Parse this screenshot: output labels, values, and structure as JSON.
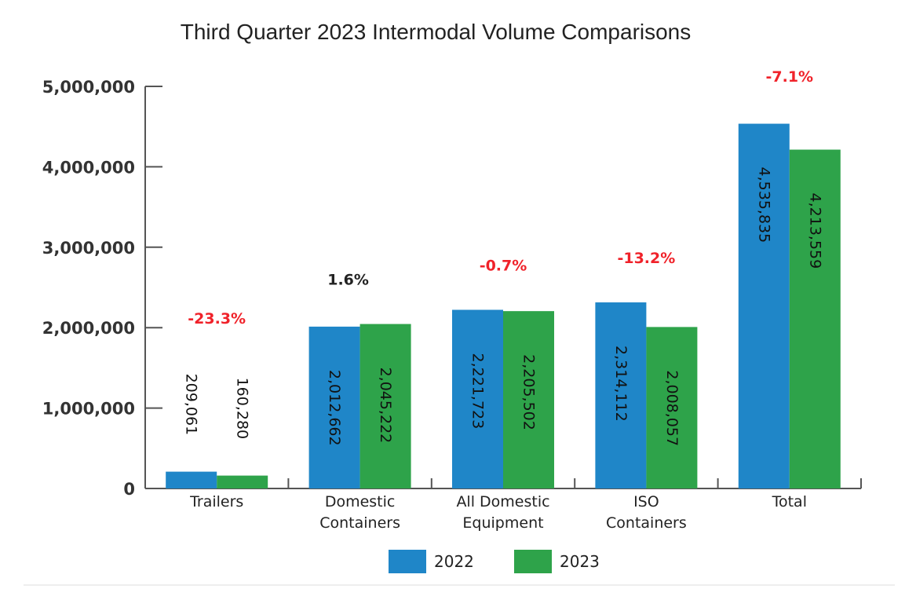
{
  "chart_data": {
    "type": "bar",
    "title": "Third Quarter 2023 Intermodal Volume Comparisons",
    "xlabel": "",
    "ylabel": "",
    "ylim": [
      0,
      5000000
    ],
    "yticks": [
      0,
      1000000,
      2000000,
      3000000,
      4000000,
      5000000
    ],
    "ytick_labels": [
      "0",
      "1,000,000",
      "2,000,000",
      "3,000,000",
      "4,000,000",
      "5,000,000"
    ],
    "categories": [
      [
        "Trailers"
      ],
      [
        "Domestic",
        "Containers"
      ],
      [
        "All Domestic",
        "Equipment"
      ],
      [
        "ISO",
        "Containers"
      ],
      [
        "Total"
      ]
    ],
    "series": [
      {
        "name": "2022",
        "color": "#1f86c8",
        "values": [
          209061,
          2012662,
          2221723,
          2314112,
          4535835
        ],
        "labels": [
          "209,061",
          "2,012,662",
          "2,221,723",
          "2,314,112",
          "4,535,835"
        ]
      },
      {
        "name": "2023",
        "color": "#2ea34a",
        "values": [
          160280,
          2045222,
          2205502,
          2008057,
          4213559
        ],
        "labels": [
          "160,280",
          "2,045,222",
          "2,205,502",
          "2,008,057",
          "4,213,559"
        ]
      }
    ],
    "changes": [
      {
        "label": "-23.3%",
        "color": "#f0222a"
      },
      {
        "label": "1.6%",
        "color": "#222222"
      },
      {
        "label": "-0.7%",
        "color": "#f0222a"
      },
      {
        "label": "-13.2%",
        "color": "#f0222a"
      },
      {
        "label": "-7.1%",
        "color": "#f0222a"
      }
    ],
    "legend": {
      "position": "bottom-center",
      "entries": [
        "2022",
        "2023"
      ]
    }
  }
}
